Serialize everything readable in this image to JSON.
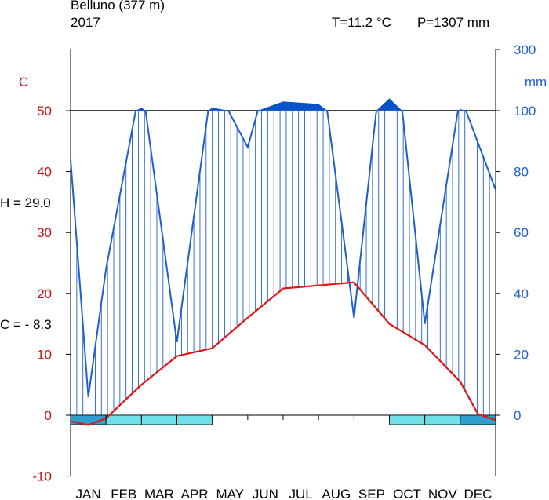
{
  "header": {
    "station": "Belluno (377 m)",
    "year": "2017",
    "mean_temp": "T=11.2 °C",
    "total_precip": "P=1307 mm"
  },
  "annotations": {
    "h_label": "H = 29.0",
    "c_label": "C = - 8.3"
  },
  "chart_data": {
    "type": "line",
    "title": "Belluno (377 m)",
    "subtitle": "2017",
    "categories": [
      "JAN",
      "FEB",
      "MAR",
      "APR",
      "MAY",
      "JUN",
      "JUL",
      "AUG",
      "SEP",
      "OCT",
      "NOV",
      "DEC"
    ],
    "left_axis": {
      "label": "C",
      "ylim": [
        -10,
        60
      ],
      "ticks": [
        -10,
        0,
        10,
        20,
        30,
        40,
        50
      ]
    },
    "right_axis": {
      "label": "mm",
      "ylim": [
        0,
        300
      ],
      "ticks": [
        0,
        20,
        40,
        60,
        80,
        100,
        300
      ]
    },
    "temperature": {
      "x": [
        0.0,
        0.5,
        1,
        2,
        3,
        4,
        5,
        6,
        7,
        8,
        9,
        10,
        11,
        11.5,
        12
      ],
      "values": [
        -1.0,
        -1.6,
        -0.5,
        5.0,
        9.7,
        11.0,
        16.0,
        20.8,
        21.3,
        21.8,
        15.0,
        11.5,
        5.5,
        0.2,
        -0.8
      ]
    },
    "precipitation": {
      "x": [
        0.0,
        0.5,
        1,
        2,
        3,
        4,
        5,
        6,
        7,
        8,
        9,
        10,
        11,
        12
      ],
      "values": [
        84,
        6,
        48,
        110,
        24,
        110,
        88,
        130,
        122,
        32,
        140,
        30,
        105,
        74
      ]
    },
    "frost_months": {
      "probable": [
        false,
        true,
        true,
        true,
        false,
        false,
        false,
        false,
        false,
        true,
        true,
        false
      ],
      "certain": [
        true,
        false,
        false,
        false,
        false,
        false,
        false,
        false,
        false,
        false,
        false,
        true
      ]
    },
    "colors": {
      "temperature": "#e01515",
      "precipitation": "#1f5fcc",
      "excess_fill": "#0a52c8",
      "frost_probable": "#6fe0e8",
      "frost_certain": "#2f9fcf",
      "left_axis_text": "#cc1010",
      "right_axis_text": "#1f5fcc"
    }
  }
}
